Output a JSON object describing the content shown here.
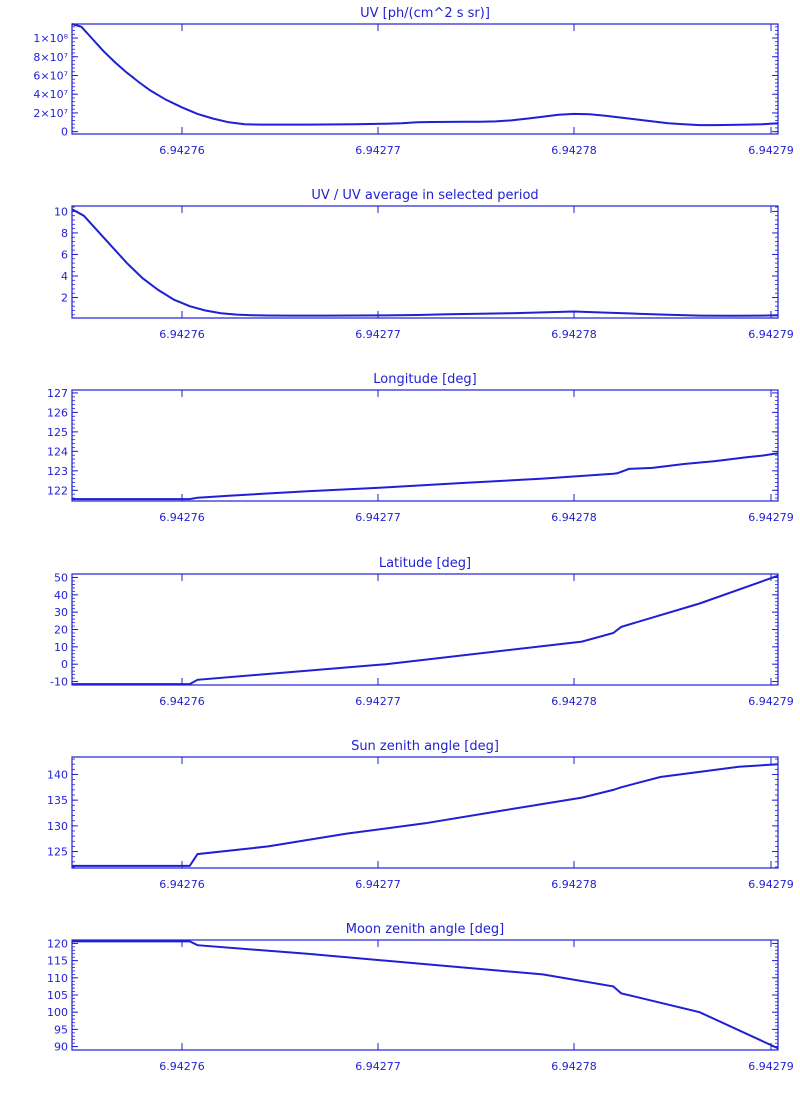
{
  "colors": {
    "ink": "#1f1fd6",
    "background": "#ffffff"
  },
  "chart_data": [
    {
      "type": "line",
      "title": "UV [ph/(cm^2 s sr)]",
      "x_ticks": [
        "6.94276",
        "6.94277",
        "6.94278",
        "6.94279"
      ],
      "y_ticks": [
        "0",
        "2×10⁷",
        "4×10⁷",
        "6×10⁷",
        "8×10⁷",
        "1×10⁸"
      ],
      "y_tick_values": [
        0,
        20000000,
        40000000,
        60000000,
        80000000,
        100000000
      ],
      "ylim": [
        -2500000,
        115000000
      ],
      "grid": false,
      "series": [
        {
          "x": [
            0,
            0.12,
            0.25,
            0.4,
            0.55,
            0.7,
            0.85,
            1.0,
            1.2,
            1.4,
            1.6,
            1.8,
            2.0,
            2.2,
            2.4,
            2.6,
            2.8,
            3.0,
            3.2,
            3.4,
            3.6,
            3.8,
            4.0,
            4.2,
            4.4,
            4.6,
            4.8,
            5.0,
            5.2,
            5.4,
            5.6,
            5.8,
            6.0,
            6.2,
            6.4,
            6.6,
            6.8,
            7.0,
            7.2,
            7.4,
            7.6,
            7.8,
            8.0,
            8.2,
            8.4,
            8.6,
            8.8,
            9.0
          ],
          "y": [
            116000000,
            112000000,
            100000000,
            86000000,
            74000000,
            63000000,
            53000000,
            44000000,
            34000000,
            26000000,
            19000000,
            14000000,
            10000000,
            8000000,
            7500000,
            7500000,
            7500000,
            7500000,
            7600000,
            7800000,
            8000000,
            8200000,
            8500000,
            9000000,
            10000000,
            10300000,
            10400000,
            10500000,
            10600000,
            11000000,
            12000000,
            14000000,
            16000000,
            18000000,
            19000000,
            18500000,
            17000000,
            15000000,
            13000000,
            11000000,
            9000000,
            8000000,
            7000000,
            7000000,
            7200000,
            7500000,
            8000000,
            9000000
          ]
        }
      ]
    },
    {
      "type": "line",
      "title": "UV / UV average in selected period",
      "x_ticks": [
        "6.94276",
        "6.94277",
        "6.94278",
        "6.94279"
      ],
      "y_ticks": [
        "2",
        "4",
        "6",
        "8",
        "10"
      ],
      "y_tick_values": [
        2,
        4,
        6,
        8,
        10
      ],
      "ylim": [
        0.1,
        10.5
      ],
      "grid": false,
      "series": [
        {
          "x": [
            0,
            0.15,
            0.3,
            0.5,
            0.7,
            0.9,
            1.1,
            1.3,
            1.5,
            1.7,
            1.9,
            2.1,
            2.3,
            2.5,
            2.8,
            3.2,
            3.6,
            4.0,
            4.4,
            4.8,
            5.2,
            5.6,
            6.0,
            6.4,
            6.8,
            7.2,
            7.6,
            8.0,
            8.4,
            8.8,
            9.0
          ],
          "y": [
            10.2,
            9.6,
            8.4,
            6.8,
            5.2,
            3.8,
            2.7,
            1.8,
            1.2,
            0.8,
            0.55,
            0.42,
            0.36,
            0.33,
            0.32,
            0.32,
            0.33,
            0.34,
            0.38,
            0.45,
            0.5,
            0.55,
            0.62,
            0.7,
            0.6,
            0.5,
            0.4,
            0.32,
            0.3,
            0.32,
            0.35
          ]
        }
      ]
    },
    {
      "type": "line",
      "title": "Longitude [deg]",
      "x_ticks": [
        "6.94276",
        "6.94277",
        "6.94278",
        "6.94279"
      ],
      "y_ticks": [
        "122",
        "123",
        "124",
        "125",
        "126",
        "127"
      ],
      "y_tick_values": [
        122,
        123,
        124,
        125,
        126,
        127
      ],
      "ylim": [
        121.45,
        127.15
      ],
      "grid": false,
      "series": [
        {
          "x": [
            0,
            1.5,
            1.6,
            2.0,
            3.0,
            4.0,
            5.0,
            6.0,
            6.9,
            6.95,
            7.1,
            7.4,
            7.8,
            8.2,
            8.6,
            8.8,
            9.0
          ],
          "y": [
            121.55,
            121.55,
            121.62,
            121.72,
            121.95,
            122.15,
            122.38,
            122.6,
            122.85,
            122.87,
            123.1,
            123.15,
            123.35,
            123.5,
            123.7,
            123.78,
            123.9
          ]
        }
      ]
    },
    {
      "type": "line",
      "title": "Latitude [deg]",
      "x_ticks": [
        "6.94276",
        "6.94277",
        "6.94278",
        "6.94279"
      ],
      "y_ticks": [
        "-10",
        "0",
        "10",
        "20",
        "30",
        "40",
        "50"
      ],
      "y_tick_values": [
        -10,
        0,
        10,
        20,
        30,
        40,
        50
      ],
      "ylim": [
        -12,
        52
      ],
      "grid": false,
      "series": [
        {
          "x": [
            0,
            1.5,
            1.6,
            4.0,
            6.5,
            6.9,
            7.0,
            8.0,
            9.0
          ],
          "y": [
            -11.5,
            -11.5,
            -9.0,
            0.0,
            13.0,
            18.0,
            21.5,
            35.0,
            51.0
          ]
        }
      ]
    },
    {
      "type": "line",
      "title": "Sun zenith angle [deg]",
      "x_ticks": [
        "6.94276",
        "6.94277",
        "6.94278",
        "6.94279"
      ],
      "y_ticks": [
        "125",
        "130",
        "135",
        "140"
      ],
      "y_tick_values": [
        125,
        130,
        135,
        140
      ],
      "ylim": [
        121.8,
        143.4
      ],
      "grid": false,
      "series": [
        {
          "x": [
            0,
            1.5,
            1.6,
            2.5,
            3.5,
            4.5,
            5.5,
            6.5,
            6.9,
            7.0,
            7.5,
            8.0,
            8.5,
            9.0
          ],
          "y": [
            122.2,
            122.2,
            124.5,
            126.0,
            128.5,
            130.5,
            133.0,
            135.5,
            137.0,
            137.5,
            139.5,
            140.5,
            141.5,
            142.0
          ]
        }
      ]
    },
    {
      "type": "line",
      "title": "Moon zenith angle [deg]",
      "x_ticks": [
        "6.94276",
        "6.94277",
        "6.94278",
        "6.94279"
      ],
      "y_ticks": [
        "90",
        "95",
        "100",
        "105",
        "110",
        "115",
        "120"
      ],
      "y_tick_values": [
        90,
        95,
        100,
        105,
        110,
        115,
        120
      ],
      "ylim": [
        89,
        121
      ],
      "grid": false,
      "series": [
        {
          "x": [
            0,
            1.5,
            1.6,
            3.0,
            4.5,
            6.0,
            6.9,
            7.0,
            8.0,
            9.0
          ],
          "y": [
            120.6,
            120.6,
            119.5,
            117.0,
            114.0,
            111.0,
            107.5,
            105.5,
            100.0,
            89.5
          ]
        }
      ]
    }
  ]
}
